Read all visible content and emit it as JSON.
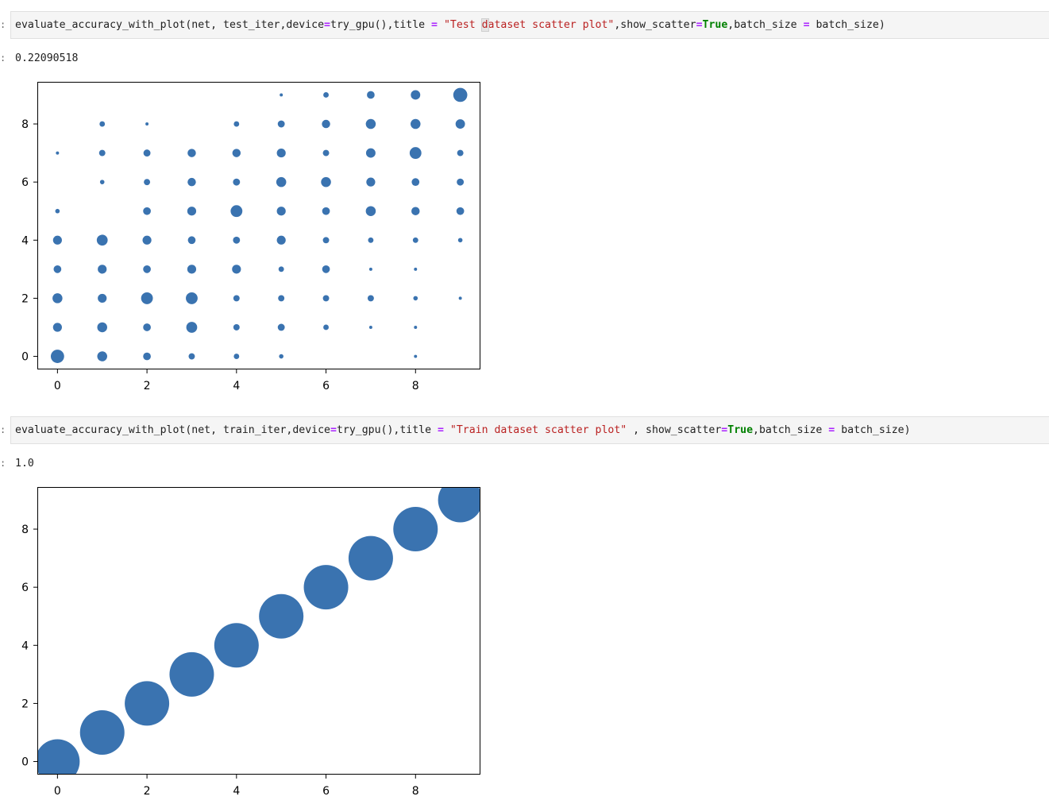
{
  "cells": [
    {
      "prompt": ":",
      "code_tokens": [
        {
          "t": "evaluate_accuracy_with_plot(net, test_iter,device"
        },
        {
          "t": "=",
          "c": "op"
        },
        {
          "t": "try_gpu(),title "
        },
        {
          "t": "=",
          "c": "op"
        },
        {
          "t": " "
        },
        {
          "t": "\"Test ",
          "c": "str"
        },
        {
          "t": "d",
          "c": "str",
          "cursor": true
        },
        {
          "t": "ataset scatter plot\"",
          "c": "str"
        },
        {
          "t": ",show_scatter"
        },
        {
          "t": "=",
          "c": "op"
        },
        {
          "t": "True",
          "c": "kw"
        },
        {
          "t": ",batch_size "
        },
        {
          "t": "=",
          "c": "op"
        },
        {
          "t": " batch_size)"
        }
      ],
      "output_prompt": ":",
      "output_text": "0.22090518"
    },
    {
      "prompt": ":",
      "code_tokens": [
        {
          "t": "evaluate_accuracy_with_plot(net, train_iter,device"
        },
        {
          "t": "=",
          "c": "op"
        },
        {
          "t": "try_gpu(),title "
        },
        {
          "t": "=",
          "c": "op"
        },
        {
          "t": " "
        },
        {
          "t": "\"Train dataset scatter plot\"",
          "c": "str"
        },
        {
          "t": " , show_scatter"
        },
        {
          "t": "=",
          "c": "op"
        },
        {
          "t": "True",
          "c": "kw"
        },
        {
          "t": ",batch_size "
        },
        {
          "t": "=",
          "c": "op"
        },
        {
          "t": " batch_size)"
        }
      ],
      "output_prompt": ":",
      "output_text": "1.0"
    }
  ],
  "colors": {
    "marker": "#3a73b0",
    "operator": "#aa22ff",
    "string": "#ba2121",
    "keyword": "#008000"
  },
  "chart_data": [
    {
      "type": "scatter",
      "title": "",
      "xlabel": "",
      "ylabel": "",
      "xlim": [
        -0.45,
        9.45
      ],
      "ylim": [
        -0.45,
        9.45
      ],
      "xticks": [
        0,
        2,
        4,
        6,
        8
      ],
      "yticks": [
        0,
        2,
        4,
        6,
        8
      ],
      "grid": false,
      "size_unit": "relative marker area",
      "points": [
        {
          "x": 0,
          "y": 0,
          "s": 9
        },
        {
          "x": 1,
          "y": 0,
          "s": 5
        },
        {
          "x": 2,
          "y": 0,
          "s": 3
        },
        {
          "x": 3,
          "y": 0,
          "s": 2
        },
        {
          "x": 4,
          "y": 0,
          "s": 1.5
        },
        {
          "x": 5,
          "y": 0,
          "s": 1
        },
        {
          "x": 8,
          "y": 0,
          "s": 0.5
        },
        {
          "x": 0,
          "y": 1,
          "s": 4
        },
        {
          "x": 1,
          "y": 1,
          "s": 5
        },
        {
          "x": 2,
          "y": 1,
          "s": 3
        },
        {
          "x": 3,
          "y": 1,
          "s": 6
        },
        {
          "x": 4,
          "y": 1,
          "s": 2
        },
        {
          "x": 5,
          "y": 1,
          "s": 2.5
        },
        {
          "x": 6,
          "y": 1,
          "s": 1.5
        },
        {
          "x": 7,
          "y": 1,
          "s": 0.5
        },
        {
          "x": 8,
          "y": 1,
          "s": 0.5
        },
        {
          "x": 0,
          "y": 2,
          "s": 5
        },
        {
          "x": 1,
          "y": 2,
          "s": 4
        },
        {
          "x": 2,
          "y": 2,
          "s": 7
        },
        {
          "x": 3,
          "y": 2,
          "s": 7
        },
        {
          "x": 4,
          "y": 2,
          "s": 2
        },
        {
          "x": 5,
          "y": 2,
          "s": 2
        },
        {
          "x": 6,
          "y": 2,
          "s": 2
        },
        {
          "x": 7,
          "y": 2,
          "s": 2
        },
        {
          "x": 8,
          "y": 2,
          "s": 1
        },
        {
          "x": 9,
          "y": 2,
          "s": 0.5
        },
        {
          "x": 0,
          "y": 3,
          "s": 3
        },
        {
          "x": 1,
          "y": 3,
          "s": 4
        },
        {
          "x": 2,
          "y": 3,
          "s": 3
        },
        {
          "x": 3,
          "y": 3,
          "s": 4
        },
        {
          "x": 4,
          "y": 3,
          "s": 4
        },
        {
          "x": 5,
          "y": 3,
          "s": 1.5
        },
        {
          "x": 6,
          "y": 3,
          "s": 3
        },
        {
          "x": 7,
          "y": 3,
          "s": 0.5
        },
        {
          "x": 8,
          "y": 3,
          "s": 0.5
        },
        {
          "x": 0,
          "y": 4,
          "s": 4
        },
        {
          "x": 1,
          "y": 4,
          "s": 6
        },
        {
          "x": 2,
          "y": 4,
          "s": 4
        },
        {
          "x": 3,
          "y": 4,
          "s": 3
        },
        {
          "x": 4,
          "y": 4,
          "s": 2.5
        },
        {
          "x": 5,
          "y": 4,
          "s": 4
        },
        {
          "x": 6,
          "y": 4,
          "s": 2
        },
        {
          "x": 7,
          "y": 4,
          "s": 1.5
        },
        {
          "x": 8,
          "y": 4,
          "s": 1.5
        },
        {
          "x": 9,
          "y": 4,
          "s": 1
        },
        {
          "x": 0,
          "y": 5,
          "s": 1
        },
        {
          "x": 2,
          "y": 5,
          "s": 3
        },
        {
          "x": 3,
          "y": 5,
          "s": 4
        },
        {
          "x": 4,
          "y": 5,
          "s": 7
        },
        {
          "x": 5,
          "y": 5,
          "s": 4
        },
        {
          "x": 6,
          "y": 5,
          "s": 3
        },
        {
          "x": 7,
          "y": 5,
          "s": 5
        },
        {
          "x": 8,
          "y": 5,
          "s": 3.5
        },
        {
          "x": 9,
          "y": 5,
          "s": 3
        },
        {
          "x": 1,
          "y": 6,
          "s": 1
        },
        {
          "x": 2,
          "y": 6,
          "s": 2
        },
        {
          "x": 3,
          "y": 6,
          "s": 3.5
        },
        {
          "x": 4,
          "y": 6,
          "s": 2.5
        },
        {
          "x": 5,
          "y": 6,
          "s": 5
        },
        {
          "x": 6,
          "y": 6,
          "s": 5
        },
        {
          "x": 7,
          "y": 6,
          "s": 4
        },
        {
          "x": 8,
          "y": 6,
          "s": 3
        },
        {
          "x": 9,
          "y": 6,
          "s": 2.5
        },
        {
          "x": 0,
          "y": 7,
          "s": 0.5
        },
        {
          "x": 1,
          "y": 7,
          "s": 2
        },
        {
          "x": 2,
          "y": 7,
          "s": 2.5
        },
        {
          "x": 3,
          "y": 7,
          "s": 3.5
        },
        {
          "x": 4,
          "y": 7,
          "s": 3.5
        },
        {
          "x": 5,
          "y": 7,
          "s": 4
        },
        {
          "x": 6,
          "y": 7,
          "s": 2
        },
        {
          "x": 7,
          "y": 7,
          "s": 4.5
        },
        {
          "x": 8,
          "y": 7,
          "s": 7
        },
        {
          "x": 9,
          "y": 7,
          "s": 2
        },
        {
          "x": 1,
          "y": 8,
          "s": 1.5
        },
        {
          "x": 2,
          "y": 8,
          "s": 0.5
        },
        {
          "x": 4,
          "y": 8,
          "s": 1.5
        },
        {
          "x": 5,
          "y": 8,
          "s": 2.5
        },
        {
          "x": 6,
          "y": 8,
          "s": 3.5
        },
        {
          "x": 7,
          "y": 8,
          "s": 5
        },
        {
          "x": 8,
          "y": 8,
          "s": 5
        },
        {
          "x": 9,
          "y": 8,
          "s": 4.5
        },
        {
          "x": 5,
          "y": 9,
          "s": 0.5
        },
        {
          "x": 6,
          "y": 9,
          "s": 1.5
        },
        {
          "x": 7,
          "y": 9,
          "s": 3
        },
        {
          "x": 8,
          "y": 9,
          "s": 4.5
        },
        {
          "x": 9,
          "y": 9,
          "s": 10
        }
      ]
    },
    {
      "type": "scatter",
      "title": "",
      "xlabel": "",
      "ylabel": "",
      "xlim": [
        -0.45,
        9.45
      ],
      "ylim": [
        -0.45,
        9.45
      ],
      "xticks": [
        0,
        2,
        4,
        6,
        8
      ],
      "yticks": [
        0,
        2,
        4,
        6,
        8
      ],
      "grid": false,
      "size_unit": "relative marker area",
      "points": [
        {
          "x": 0,
          "y": 0,
          "s": 100
        },
        {
          "x": 1,
          "y": 1,
          "s": 100
        },
        {
          "x": 2,
          "y": 2,
          "s": 100
        },
        {
          "x": 3,
          "y": 3,
          "s": 100
        },
        {
          "x": 4,
          "y": 4,
          "s": 100
        },
        {
          "x": 5,
          "y": 5,
          "s": 100
        },
        {
          "x": 6,
          "y": 6,
          "s": 100
        },
        {
          "x": 7,
          "y": 7,
          "s": 100
        },
        {
          "x": 8,
          "y": 8,
          "s": 100
        },
        {
          "x": 9,
          "y": 9,
          "s": 100
        }
      ]
    }
  ]
}
